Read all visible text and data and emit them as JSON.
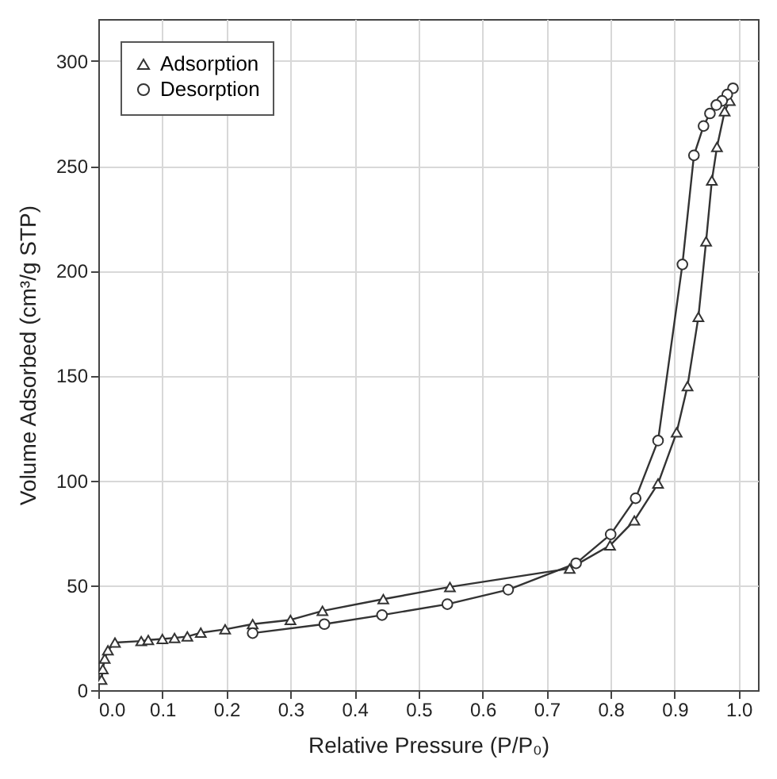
{
  "chart_data": {
    "type": "line",
    "xlabel": "Relative Pressure (P/P₀)",
    "ylabel": "Volume Adsorbed (cm³/g STP)",
    "xlim": [
      0,
      1.03
    ],
    "ylim": [
      0,
      320
    ],
    "xticks": [
      {
        "value": 0,
        "label": "0.0"
      },
      0.1,
      0.2,
      0.3,
      0.4,
      0.5,
      0.6,
      0.7,
      0.8,
      0.9,
      {
        "value": 1,
        "label": "1.0"
      }
    ],
    "yticks": [
      0,
      50,
      100,
      150,
      200,
      250,
      300
    ],
    "grid": true,
    "legend": "top left",
    "line_style": "solid",
    "series": [
      {
        "name": "Adsorption",
        "color": "#333333",
        "marker": "triangle",
        "x": [
          0.005,
          0.007,
          0.01,
          0.015,
          0.026,
          0.067,
          0.078,
          0.1,
          0.119,
          0.139,
          0.16,
          0.198,
          0.241,
          0.3,
          0.35,
          0.445,
          0.549,
          0.736,
          0.799,
          0.837,
          0.874,
          0.903,
          0.92,
          0.937,
          0.949,
          0.958,
          0.966,
          0.978,
          0.986
        ],
        "values": [
          5,
          10,
          15,
          19,
          22.7,
          23.4,
          23.9,
          24.4,
          24.9,
          25.6,
          27.4,
          29,
          31.5,
          33.5,
          37.8,
          43.4,
          49.2,
          58,
          69,
          80.9,
          98.5,
          122.9,
          145,
          178,
          214,
          243,
          259,
          276,
          281
        ]
      },
      {
        "name": "Desorption",
        "color": "#333333",
        "marker": "circle",
        "x": [
          0.991,
          0.982,
          0.974,
          0.965,
          0.955,
          0.945,
          0.93,
          0.912,
          0.874,
          0.839,
          0.8,
          0.746,
          0.64,
          0.545,
          0.443,
          0.353,
          0.241
        ],
        "values": [
          287,
          284,
          281,
          279,
          275,
          269,
          255,
          203,
          119,
          91.5,
          74.3,
          60.5,
          47.9,
          41,
          35.8,
          31.5,
          27.2
        ]
      }
    ]
  }
}
